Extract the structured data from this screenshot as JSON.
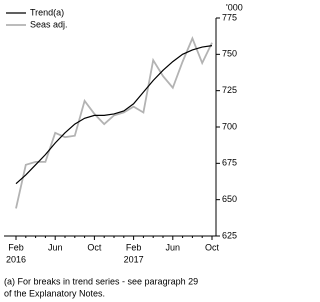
{
  "chart_data": {
    "type": "line",
    "y_unit": "'000",
    "categories": [
      "Feb",
      null,
      null,
      null,
      "Jun",
      null,
      null,
      null,
      "Oct",
      null,
      null,
      null,
      "Feb",
      null,
      null,
      null,
      "Jun",
      null,
      null,
      null,
      "Oct"
    ],
    "category_years": [
      "2016",
      null,
      null,
      null,
      null,
      null,
      null,
      null,
      null,
      null,
      null,
      null,
      "2017",
      null,
      null,
      null,
      null,
      null,
      null,
      null,
      null
    ],
    "series": [
      {
        "name": "Trend(a)",
        "color": "#000000",
        "values": [
          661,
          667,
          674,
          681,
          689,
          696,
          702,
          706,
          708,
          708,
          709,
          711,
          716,
          724,
          732,
          739,
          745,
          750,
          753,
          755,
          756
        ]
      },
      {
        "name": "Seas adj.",
        "color": "#b3b3b3",
        "values": [
          644,
          674,
          676,
          676,
          696,
          693,
          694,
          718,
          709,
          702,
          708,
          710,
          714,
          710,
          746,
          735,
          727,
          745,
          761,
          744,
          758
        ]
      }
    ],
    "ylim": [
      625,
      775
    ],
    "yticks": [
      625,
      650,
      675,
      700,
      725,
      750,
      775
    ],
    "footnote": [
      "(a) For breaks in trend series - see paragraph 29",
      "of the Explanatory Notes."
    ]
  }
}
